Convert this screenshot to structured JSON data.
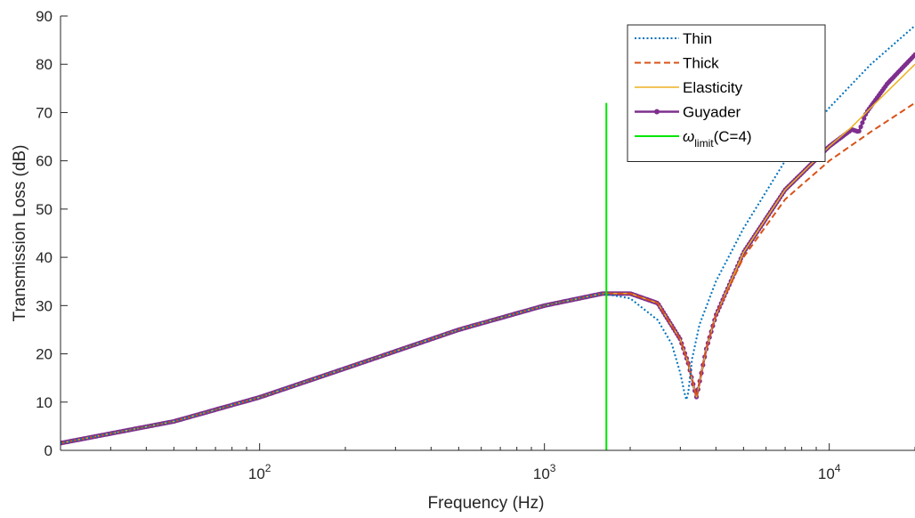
{
  "chart_data": {
    "type": "line",
    "xscale": "log",
    "xlim": [
      20,
      20000
    ],
    "ylim": [
      0,
      90
    ],
    "xlabel": "Frequency (Hz)",
    "ylabel": "Transmission Loss (dB)",
    "xticks": [
      {
        "value": 100,
        "base": "10",
        "exp": "2"
      },
      {
        "value": 1000,
        "base": "10",
        "exp": "3"
      },
      {
        "value": 10000,
        "base": "10",
        "exp": "4"
      }
    ],
    "yticks": [
      "0",
      "10",
      "20",
      "30",
      "40",
      "50",
      "60",
      "70",
      "80",
      "90"
    ],
    "legend": {
      "position": "top-right",
      "entries": [
        {
          "label": "Thin"
        },
        {
          "label": "Thick"
        },
        {
          "label": "Elasticity"
        },
        {
          "label": "Guyader"
        },
        {
          "label": "ω",
          "sub": "limit",
          "suffix": "(C=4)"
        }
      ]
    },
    "series": [
      {
        "name": "Thin",
        "color": "#0072BD",
        "style": "dotted",
        "x": [
          20,
          50,
          100,
          200,
          500,
          1000,
          1600,
          2000,
          2500,
          2800,
          3000,
          3100,
          3150,
          3200,
          3300,
          3500,
          4000,
          5000,
          7000,
          10000,
          14000,
          20000
        ],
        "y": [
          1.5,
          6,
          11,
          17,
          25,
          30,
          32.5,
          31.5,
          27,
          22,
          16,
          12,
          10.5,
          12,
          19,
          26,
          35,
          46,
          60,
          71,
          80,
          88
        ]
      },
      {
        "name": "Thick",
        "color": "#D95319",
        "style": "dashed",
        "x": [
          20,
          50,
          100,
          200,
          500,
          1000,
          1600,
          2000,
          2500,
          3000,
          3200,
          3350,
          3420,
          3500,
          3700,
          4000,
          5000,
          7000,
          10000,
          14000,
          20000
        ],
        "y": [
          1.5,
          6,
          11,
          17,
          25,
          30,
          32.5,
          32.5,
          30.5,
          23,
          18,
          13,
          11,
          14,
          21,
          28,
          40,
          52,
          60,
          66,
          72
        ]
      },
      {
        "name": "Elasticity",
        "color": "#EDB120",
        "style": "solid",
        "x": [
          20,
          50,
          100,
          200,
          500,
          1000,
          1600,
          2000,
          2500,
          3000,
          3200,
          3350,
          3420,
          3500,
          3700,
          4000,
          5000,
          7000,
          10000,
          12000,
          14000,
          20000
        ],
        "y": [
          1.5,
          6,
          11,
          17,
          25,
          30,
          32.5,
          32.5,
          30.5,
          23,
          18,
          13,
          11,
          14,
          21,
          28,
          41,
          54,
          63,
          67,
          71,
          80
        ]
      },
      {
        "name": "Guyader",
        "color": "#7E2F8E",
        "style": "solid-marker",
        "x": [
          20,
          50,
          100,
          200,
          500,
          1000,
          1600,
          2000,
          2500,
          3000,
          3200,
          3350,
          3420,
          3500,
          3700,
          4000,
          5000,
          7000,
          10000,
          12000,
          12700,
          13500,
          16000,
          20000
        ],
        "y": [
          1.5,
          6,
          11,
          17,
          25,
          30,
          32.5,
          32.5,
          30.5,
          23,
          18,
          13,
          11,
          14,
          21,
          28,
          41,
          54,
          63,
          66.5,
          66,
          70,
          76,
          82
        ]
      },
      {
        "name": "ω_limit(C=4)",
        "color": "#00E600",
        "style": "vertical",
        "x": [
          1650,
          1650
        ],
        "y": [
          0,
          72
        ]
      }
    ]
  }
}
